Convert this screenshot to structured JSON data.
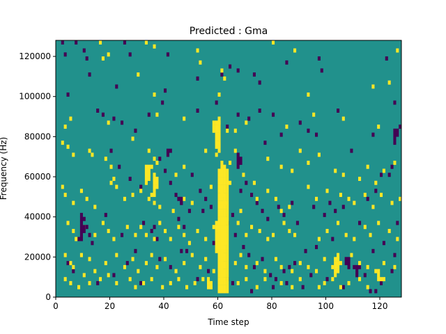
{
  "chart_data": {
    "type": "heatmap",
    "title": "Predicted : Gma",
    "xlabel": "Time step",
    "ylabel": "Frequency (Hz)",
    "xlim": [
      0,
      128
    ],
    "ylim": [
      0,
      128000
    ],
    "xticks": [
      0,
      20,
      40,
      60,
      80,
      100,
      120
    ],
    "yticks": [
      0,
      20000,
      40000,
      60000,
      80000,
      100000,
      120000
    ],
    "ytick_labels": [
      "0",
      "20000",
      "40000",
      "60000",
      "80000",
      "100000",
      "120000"
    ],
    "grid": false,
    "cell_width": 1,
    "cell_height": 2000,
    "levels": [
      0,
      1,
      2
    ],
    "colors": {
      "0": "#440154",
      "1": "#21918c",
      "2": "#fde725"
    },
    "background_value": 1,
    "low_cells": [
      [
        2,
        126
      ],
      [
        7,
        126
      ],
      [
        25,
        126
      ],
      [
        3,
        120
      ],
      [
        10,
        122
      ],
      [
        11,
        118
      ],
      [
        27,
        120
      ],
      [
        41,
        120
      ],
      [
        64,
        114
      ],
      [
        97,
        118
      ],
      [
        12,
        110
      ],
      [
        52,
        108
      ],
      [
        67,
        112
      ],
      [
        73,
        110
      ],
      [
        75,
        106
      ],
      [
        98,
        112
      ],
      [
        22,
        104
      ],
      [
        40,
        102
      ],
      [
        61,
        110
      ],
      [
        85,
        116
      ],
      [
        122,
        118
      ],
      [
        4,
        100
      ],
      [
        15,
        92
      ],
      [
        17,
        90
      ],
      [
        21,
        88
      ],
      [
        24,
        86
      ],
      [
        29,
        82
      ],
      [
        34,
        90
      ],
      [
        39,
        96
      ],
      [
        52,
        92
      ],
      [
        59,
        96
      ],
      [
        63,
        84
      ],
      [
        67,
        90
      ],
      [
        71,
        88
      ],
      [
        75,
        92
      ],
      [
        77,
        76
      ],
      [
        80,
        90
      ],
      [
        83,
        80
      ],
      [
        90,
        86
      ],
      [
        93,
        82
      ],
      [
        96,
        80
      ],
      [
        104,
        92
      ],
      [
        109,
        72
      ],
      [
        117,
        80
      ],
      [
        125,
        96
      ],
      [
        127,
        84
      ],
      [
        123,
        60
      ],
      [
        20,
        72
      ],
      [
        23,
        64
      ],
      [
        27,
        58
      ],
      [
        31,
        54
      ],
      [
        38,
        68
      ],
      [
        40,
        62
      ],
      [
        42,
        56
      ],
      [
        44,
        50
      ],
      [
        46,
        46
      ],
      [
        49,
        42
      ],
      [
        50,
        60
      ],
      [
        53,
        52
      ],
      [
        55,
        48
      ],
      [
        57,
        44
      ],
      [
        60,
        40
      ],
      [
        63,
        36
      ],
      [
        65,
        40
      ],
      [
        68,
        52
      ],
      [
        70,
        56
      ],
      [
        72,
        50
      ],
      [
        74,
        46
      ],
      [
        76,
        42
      ],
      [
        78,
        38
      ],
      [
        82,
        44
      ],
      [
        84,
        40
      ],
      [
        87,
        46
      ],
      [
        89,
        36
      ],
      [
        95,
        44
      ],
      [
        99,
        40
      ],
      [
        101,
        46
      ],
      [
        103,
        42
      ],
      [
        106,
        44
      ],
      [
        112,
        36
      ],
      [
        115,
        48
      ],
      [
        118,
        52
      ],
      [
        120,
        60
      ],
      [
        124,
        64
      ],
      [
        126,
        36
      ],
      [
        9,
        40
      ],
      [
        10,
        38
      ],
      [
        11,
        34
      ],
      [
        12,
        30
      ],
      [
        8,
        28
      ],
      [
        13,
        26
      ],
      [
        18,
        40
      ],
      [
        24,
        30
      ],
      [
        29,
        22
      ],
      [
        32,
        36
      ],
      [
        35,
        32
      ],
      [
        36,
        34
      ],
      [
        37,
        28
      ],
      [
        45,
        38
      ],
      [
        47,
        34
      ],
      [
        48,
        22
      ],
      [
        54,
        42
      ],
      [
        58,
        26
      ],
      [
        66,
        30
      ],
      [
        69,
        24
      ],
      [
        71,
        20
      ],
      [
        73,
        14
      ],
      [
        76,
        18
      ],
      [
        79,
        10
      ],
      [
        81,
        8
      ],
      [
        84,
        12
      ],
      [
        86,
        14
      ],
      [
        88,
        16
      ],
      [
        92,
        22
      ],
      [
        96,
        24
      ],
      [
        102,
        28
      ],
      [
        108,
        18
      ],
      [
        110,
        14
      ],
      [
        111,
        14
      ],
      [
        112,
        14
      ],
      [
        114,
        10
      ],
      [
        117,
        22
      ],
      [
        121,
        26
      ],
      [
        125,
        20
      ],
      [
        124,
        12
      ],
      [
        91,
        4
      ],
      [
        4,
        16
      ],
      [
        6,
        12
      ],
      [
        15,
        6
      ],
      [
        21,
        10
      ],
      [
        26,
        16
      ],
      [
        31,
        6
      ],
      [
        38,
        18
      ],
      [
        42,
        14
      ],
      [
        46,
        22
      ],
      [
        52,
        8
      ],
      [
        56,
        12
      ],
      [
        63,
        8
      ],
      [
        65,
        6
      ],
      [
        72,
        2
      ],
      [
        80,
        4
      ],
      [
        85,
        6
      ],
      [
        94,
        10
      ],
      [
        100,
        8
      ],
      [
        106,
        4
      ],
      [
        116,
        2
      ],
      [
        118,
        2
      ],
      [
        120,
        6
      ]
    ],
    "high_cells": [
      [
        16,
        126
      ],
      [
        33,
        126
      ],
      [
        80,
        126
      ],
      [
        19,
        120
      ],
      [
        36,
        124
      ],
      [
        52,
        122
      ],
      [
        88,
        122
      ],
      [
        126,
        122
      ],
      [
        17,
        118
      ],
      [
        53,
        116
      ],
      [
        61,
        112
      ],
      [
        62,
        108
      ],
      [
        30,
        110
      ],
      [
        36,
        100
      ],
      [
        60,
        100
      ],
      [
        93,
        100
      ],
      [
        117,
        104
      ],
      [
        123,
        106
      ],
      [
        5,
        88
      ],
      [
        3,
        84
      ],
      [
        19,
        86
      ],
      [
        37,
        90
      ],
      [
        47,
        88
      ],
      [
        60,
        86
      ],
      [
        63,
        82
      ],
      [
        66,
        82
      ],
      [
        70,
        86
      ],
      [
        85,
        84
      ],
      [
        95,
        90
      ],
      [
        106,
        88
      ],
      [
        119,
        84
      ],
      [
        2,
        76
      ],
      [
        4,
        74
      ],
      [
        6,
        70
      ],
      [
        12,
        72
      ],
      [
        13,
        70
      ],
      [
        18,
        68
      ],
      [
        20,
        64
      ],
      [
        28,
        78
      ],
      [
        34,
        72
      ],
      [
        36,
        68
      ],
      [
        35,
        64
      ],
      [
        37,
        66
      ],
      [
        44,
        60
      ],
      [
        47,
        64
      ],
      [
        55,
        72
      ],
      [
        59,
        70
      ],
      [
        64,
        66
      ],
      [
        66,
        72
      ],
      [
        69,
        60
      ],
      [
        73,
        56
      ],
      [
        78,
        68
      ],
      [
        83,
        64
      ],
      [
        87,
        62
      ],
      [
        90,
        72
      ],
      [
        93,
        66
      ],
      [
        97,
        70
      ],
      [
        103,
        62
      ],
      [
        106,
        60
      ],
      [
        112,
        58
      ],
      [
        115,
        64
      ],
      [
        118,
        56
      ],
      [
        121,
        62
      ],
      [
        125,
        66
      ],
      [
        2,
        54
      ],
      [
        3,
        50
      ],
      [
        6,
        46
      ],
      [
        9,
        52
      ],
      [
        11,
        48
      ],
      [
        14,
        44
      ],
      [
        20,
        56
      ],
      [
        21,
        58
      ],
      [
        22,
        54
      ],
      [
        25,
        48
      ],
      [
        28,
        50
      ],
      [
        31,
        52
      ],
      [
        34,
        48
      ],
      [
        35,
        50
      ],
      [
        36,
        46
      ],
      [
        38,
        44
      ],
      [
        43,
        42
      ],
      [
        47,
        48
      ],
      [
        50,
        46
      ],
      [
        57,
        54
      ],
      [
        61,
        50
      ],
      [
        62,
        46
      ],
      [
        64,
        56
      ],
      [
        68,
        42
      ],
      [
        74,
        48
      ],
      [
        78,
        52
      ],
      [
        81,
        48
      ],
      [
        83,
        42
      ],
      [
        86,
        44
      ],
      [
        93,
        54
      ],
      [
        96,
        48
      ],
      [
        100,
        52
      ],
      [
        105,
        50
      ],
      [
        108,
        48
      ],
      [
        110,
        46
      ],
      [
        114,
        50
      ],
      [
        117,
        44
      ],
      [
        120,
        50
      ],
      [
        124,
        46
      ],
      [
        127,
        48
      ],
      [
        4,
        36
      ],
      [
        6,
        32
      ],
      [
        7,
        28
      ],
      [
        10,
        34
      ],
      [
        14,
        30
      ],
      [
        17,
        36
      ],
      [
        19,
        32
      ],
      [
        21,
        28
      ],
      [
        26,
        34
      ],
      [
        29,
        30
      ],
      [
        31,
        34
      ],
      [
        33,
        30
      ],
      [
        36,
        28
      ],
      [
        38,
        36
      ],
      [
        40,
        32
      ],
      [
        42,
        28
      ],
      [
        45,
        34
      ],
      [
        47,
        30
      ],
      [
        49,
        26
      ],
      [
        52,
        32
      ],
      [
        55,
        28
      ],
      [
        58,
        34
      ],
      [
        67,
        36
      ],
      [
        70,
        30
      ],
      [
        72,
        34
      ],
      [
        75,
        32
      ],
      [
        78,
        28
      ],
      [
        80,
        30
      ],
      [
        84,
        36
      ],
      [
        86,
        32
      ],
      [
        88,
        30
      ],
      [
        97,
        28
      ],
      [
        100,
        32
      ],
      [
        104,
        36
      ],
      [
        107,
        30
      ],
      [
        110,
        28
      ],
      [
        114,
        34
      ],
      [
        116,
        30
      ],
      [
        119,
        36
      ],
      [
        123,
        32
      ],
      [
        126,
        28
      ],
      [
        3,
        20
      ],
      [
        5,
        16
      ],
      [
        6,
        14
      ],
      [
        9,
        20
      ],
      [
        12,
        18
      ],
      [
        14,
        12
      ],
      [
        18,
        16
      ],
      [
        22,
        20
      ],
      [
        25,
        14
      ],
      [
        28,
        18
      ],
      [
        30,
        12
      ],
      [
        33,
        16
      ],
      [
        35,
        20
      ],
      [
        37,
        14
      ],
      [
        40,
        18
      ],
      [
        44,
        12
      ],
      [
        47,
        16
      ],
      [
        50,
        20
      ],
      [
        53,
        14
      ],
      [
        55,
        18
      ],
      [
        58,
        12
      ],
      [
        66,
        16
      ],
      [
        68,
        20
      ],
      [
        70,
        14
      ],
      [
        74,
        16
      ],
      [
        77,
        12
      ],
      [
        81,
        18
      ],
      [
        83,
        14
      ],
      [
        87,
        12
      ],
      [
        90,
        16
      ],
      [
        93,
        14
      ],
      [
        96,
        12
      ],
      [
        99,
        18
      ],
      [
        102,
        14
      ],
      [
        105,
        16
      ],
      [
        109,
        20
      ],
      [
        112,
        16
      ],
      [
        115,
        14
      ],
      [
        118,
        12
      ],
      [
        121,
        16
      ],
      [
        125,
        14
      ],
      [
        3,
        8
      ],
      [
        5,
        6
      ],
      [
        8,
        4
      ],
      [
        10,
        10
      ],
      [
        12,
        6
      ],
      [
        16,
        8
      ],
      [
        19,
        10
      ],
      [
        22,
        6
      ],
      [
        27,
        8
      ],
      [
        29,
        4
      ],
      [
        32,
        6
      ],
      [
        35,
        8
      ],
      [
        39,
        4
      ],
      [
        42,
        6
      ],
      [
        45,
        8
      ],
      [
        48,
        4
      ],
      [
        51,
        6
      ],
      [
        54,
        8
      ],
      [
        57,
        4
      ],
      [
        67,
        6
      ],
      [
        70,
        8
      ],
      [
        74,
        4
      ],
      [
        77,
        8
      ],
      [
        83,
        6
      ],
      [
        87,
        4
      ],
      [
        90,
        8
      ],
      [
        97,
        4
      ],
      [
        99,
        6
      ],
      [
        102,
        8
      ],
      [
        105,
        4
      ],
      [
        108,
        6
      ],
      [
        112,
        8
      ],
      [
        115,
        4
      ],
      [
        121,
        8
      ]
    ],
    "high_runs": [
      [
        61,
        2,
        68
      ],
      [
        62,
        2,
        66
      ],
      [
        63,
        2,
        64
      ],
      [
        60,
        2,
        64
      ],
      [
        59,
        22,
        38
      ],
      [
        60,
        14,
        40
      ],
      [
        61,
        8,
        40
      ],
      [
        62,
        26,
        40
      ],
      [
        56,
        4,
        10
      ],
      [
        57,
        4,
        8
      ],
      [
        103,
        10,
        20
      ],
      [
        104,
        12,
        22
      ],
      [
        33,
        56,
        66
      ],
      [
        34,
        58,
        66
      ],
      [
        58,
        82,
        88
      ],
      [
        59,
        74,
        88
      ],
      [
        60,
        72,
        90
      ],
      [
        119,
        8,
        14
      ],
      [
        120,
        8,
        10
      ],
      [
        36,
        50,
        62
      ],
      [
        37,
        54,
        60
      ]
    ],
    "low_runs": [
      [
        9,
        28,
        40
      ],
      [
        10,
        32,
        36
      ],
      [
        45,
        48,
        50
      ],
      [
        46,
        46,
        50
      ],
      [
        67,
        64,
        72
      ],
      [
        68,
        66,
        70
      ],
      [
        41,
        70,
        74
      ],
      [
        42,
        72,
        74
      ],
      [
        125,
        76,
        84
      ],
      [
        126,
        80,
        84
      ],
      [
        107,
        16,
        20
      ],
      [
        108,
        14,
        18
      ],
      [
        111,
        10,
        14
      ]
    ]
  }
}
